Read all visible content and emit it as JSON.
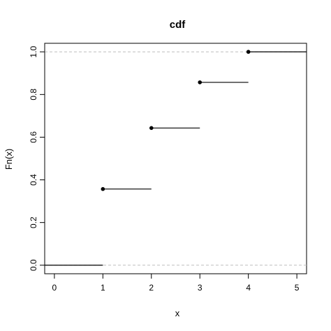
{
  "chart_data": {
    "type": "line",
    "title": "cdf",
    "xlabel": "x",
    "ylabel": "Fn(x)",
    "xlim": [
      -0.2,
      5.2
    ],
    "ylim": [
      -0.04,
      1.04
    ],
    "x_ticks": [
      0,
      1,
      2,
      3,
      4,
      5
    ],
    "y_ticks": [
      0.0,
      0.2,
      0.4,
      0.6,
      0.8,
      1.0
    ],
    "x_tick_labels": [
      "0",
      "1",
      "2",
      "3",
      "4",
      "5"
    ],
    "y_tick_labels": [
      "0.0",
      "0.2",
      "0.4",
      "0.6",
      "0.8",
      "1.0"
    ],
    "reference_lines_y": [
      0,
      1
    ],
    "points": [
      {
        "x": 1,
        "y": 0.357
      },
      {
        "x": 2,
        "y": 0.643
      },
      {
        "x": 3,
        "y": 0.857
      },
      {
        "x": 4,
        "y": 1.0
      }
    ],
    "steps": [
      {
        "x_start": -0.2,
        "x_end": 1,
        "y": 0.0
      },
      {
        "x_start": 1,
        "x_end": 2,
        "y": 0.357
      },
      {
        "x_start": 2,
        "x_end": 3,
        "y": 0.643
      },
      {
        "x_start": 3,
        "x_end": 4,
        "y": 0.857
      },
      {
        "x_start": 4,
        "x_end": 5.2,
        "y": 1.0
      }
    ],
    "colors": {
      "line": "#000000",
      "reference": "#bebebe",
      "frame": "#000000"
    }
  }
}
